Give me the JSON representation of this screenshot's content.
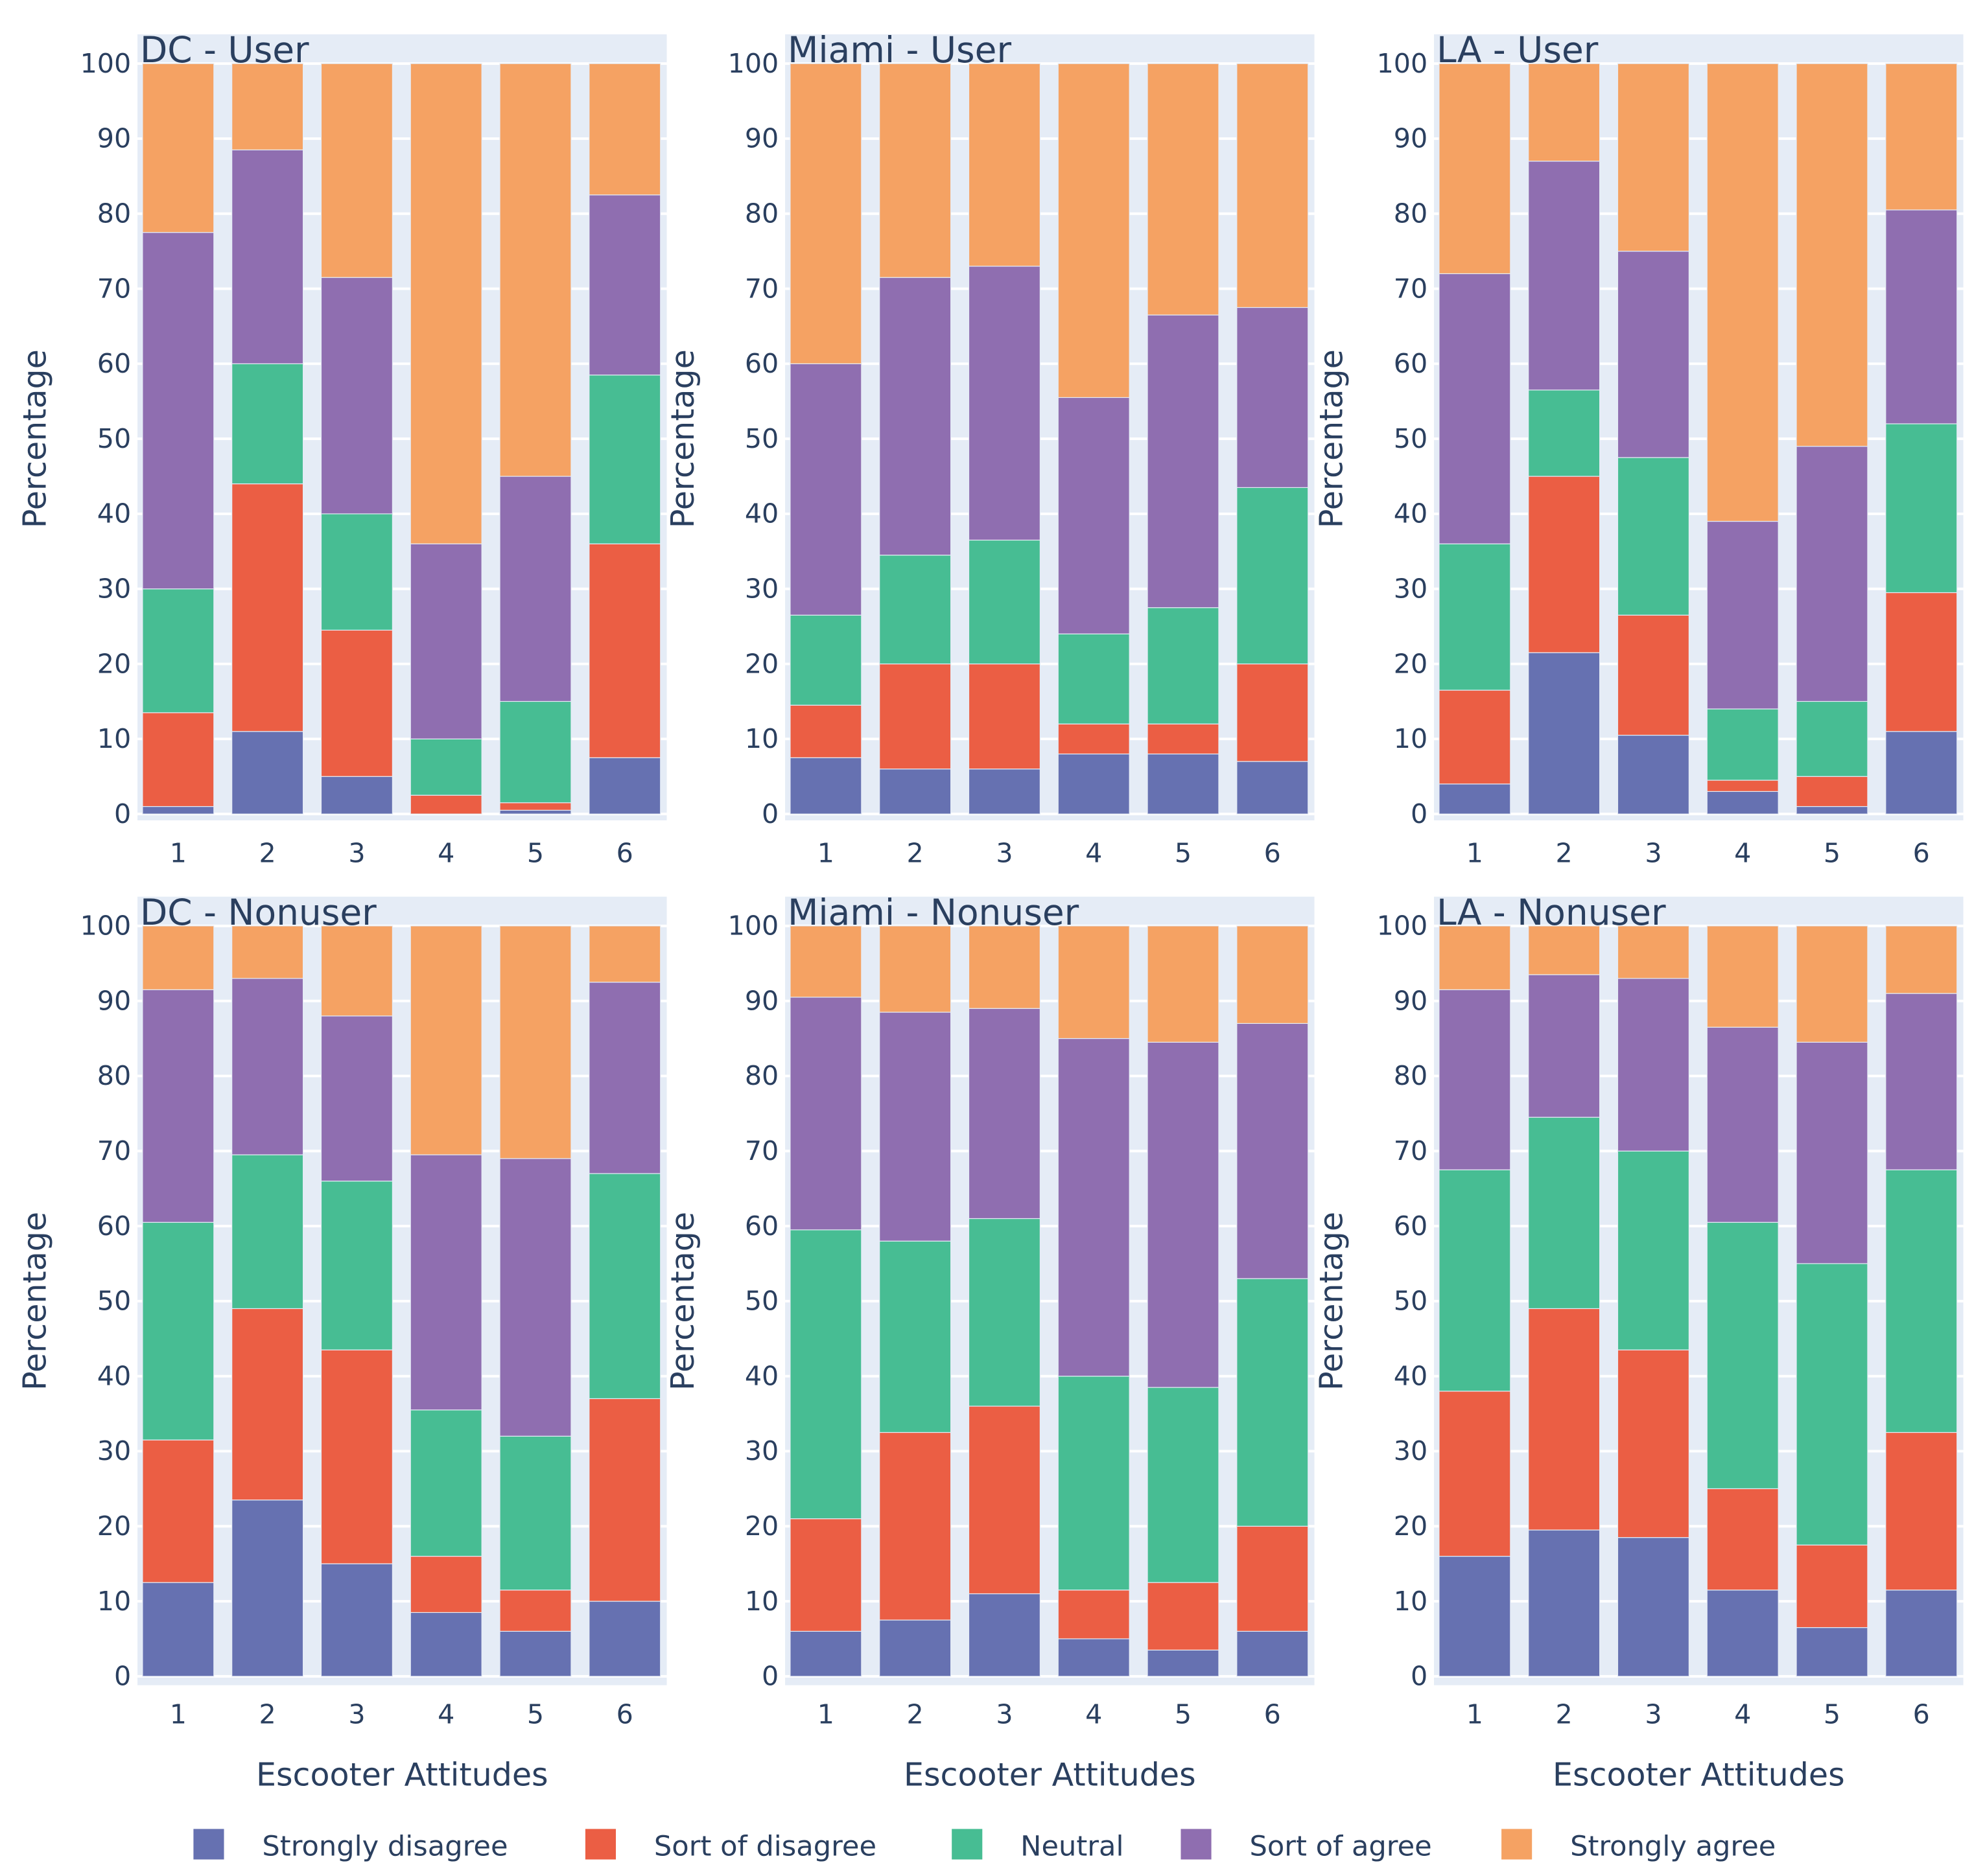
{
  "chart_data": {
    "type": "bar",
    "stacked": true,
    "categories": [
      "1",
      "2",
      "3",
      "4",
      "5",
      "6"
    ],
    "ylabel": "Percentage",
    "xlabel": "Escooter Attitudes",
    "ylim": [
      0,
      100
    ],
    "yticks": [
      0,
      10,
      20,
      30,
      40,
      50,
      60,
      70,
      80,
      90,
      100
    ],
    "grid": true,
    "legend_placement": "bottom",
    "series_names": [
      "Strongly disagree",
      "Sort of disagree",
      "Neutral",
      "Sort of agree",
      "Strongly agree"
    ],
    "colors": [
      "#6671b1",
      "#eb5e44",
      "#47bd93",
      "#8f6eb0",
      "#f5a263"
    ],
    "panels": [
      {
        "title": "DC - User",
        "values": [
          [
            1,
            12.5,
            16.5,
            47.5,
            22.5
          ],
          [
            11,
            33,
            16,
            28.5,
            11.5
          ],
          [
            5,
            19.5,
            15.5,
            31.5,
            28.5
          ],
          [
            0,
            2.5,
            7.5,
            26,
            64
          ],
          [
            0.5,
            1,
            13.5,
            30,
            55
          ],
          [
            7.5,
            28.5,
            22.5,
            24,
            17.5
          ]
        ]
      },
      {
        "title": "Miami - User",
        "values": [
          [
            7.5,
            7,
            12,
            33.5,
            40
          ],
          [
            6,
            14,
            14.5,
            37,
            28.5
          ],
          [
            6,
            14,
            16.5,
            36.5,
            27
          ],
          [
            8,
            4,
            12,
            31.5,
            44.5
          ],
          [
            8,
            4,
            15.5,
            39,
            33.5
          ],
          [
            7,
            13,
            23.5,
            24,
            32.5
          ]
        ]
      },
      {
        "title": "LA - User",
        "values": [
          [
            4,
            12.5,
            19.5,
            36,
            28
          ],
          [
            21.5,
            23.5,
            11.5,
            30.5,
            13
          ],
          [
            10.5,
            16,
            21,
            27.5,
            25
          ],
          [
            3,
            1.5,
            9.5,
            25,
            61
          ],
          [
            1,
            4,
            10,
            34,
            51
          ],
          [
            11,
            18.5,
            22.5,
            28.5,
            19.5
          ]
        ]
      },
      {
        "title": "DC - Nonuser",
        "values": [
          [
            12.5,
            19,
            29,
            31,
            8.5
          ],
          [
            23.5,
            25.5,
            20.5,
            23.5,
            7
          ],
          [
            15,
            28.5,
            22.5,
            22,
            12
          ],
          [
            8.5,
            7.5,
            19.5,
            34,
            30.5
          ],
          [
            6,
            5.5,
            20.5,
            37,
            31
          ],
          [
            10,
            27,
            30,
            25.5,
            7.5
          ]
        ]
      },
      {
        "title": "Miami - Nonuser",
        "values": [
          [
            6,
            15,
            38.5,
            31,
            9.5
          ],
          [
            7.5,
            25,
            25.5,
            30.5,
            11.5
          ],
          [
            11,
            25,
            25,
            28,
            11
          ],
          [
            5,
            6.5,
            28.5,
            45,
            15
          ],
          [
            3.5,
            9,
            26,
            46,
            15.5
          ],
          [
            6,
            14,
            33,
            34,
            13
          ]
        ]
      },
      {
        "title": "LA - Nonuser",
        "values": [
          [
            16,
            22,
            29.5,
            24,
            8.5
          ],
          [
            19.5,
            29.5,
            25.5,
            19,
            6.5
          ],
          [
            18.5,
            25,
            26.5,
            23,
            7
          ],
          [
            11.5,
            13.5,
            35.5,
            26,
            13.5
          ],
          [
            6.5,
            11,
            37.5,
            29.5,
            15.5
          ],
          [
            11.5,
            21,
            35,
            23.5,
            9
          ]
        ]
      }
    ]
  }
}
